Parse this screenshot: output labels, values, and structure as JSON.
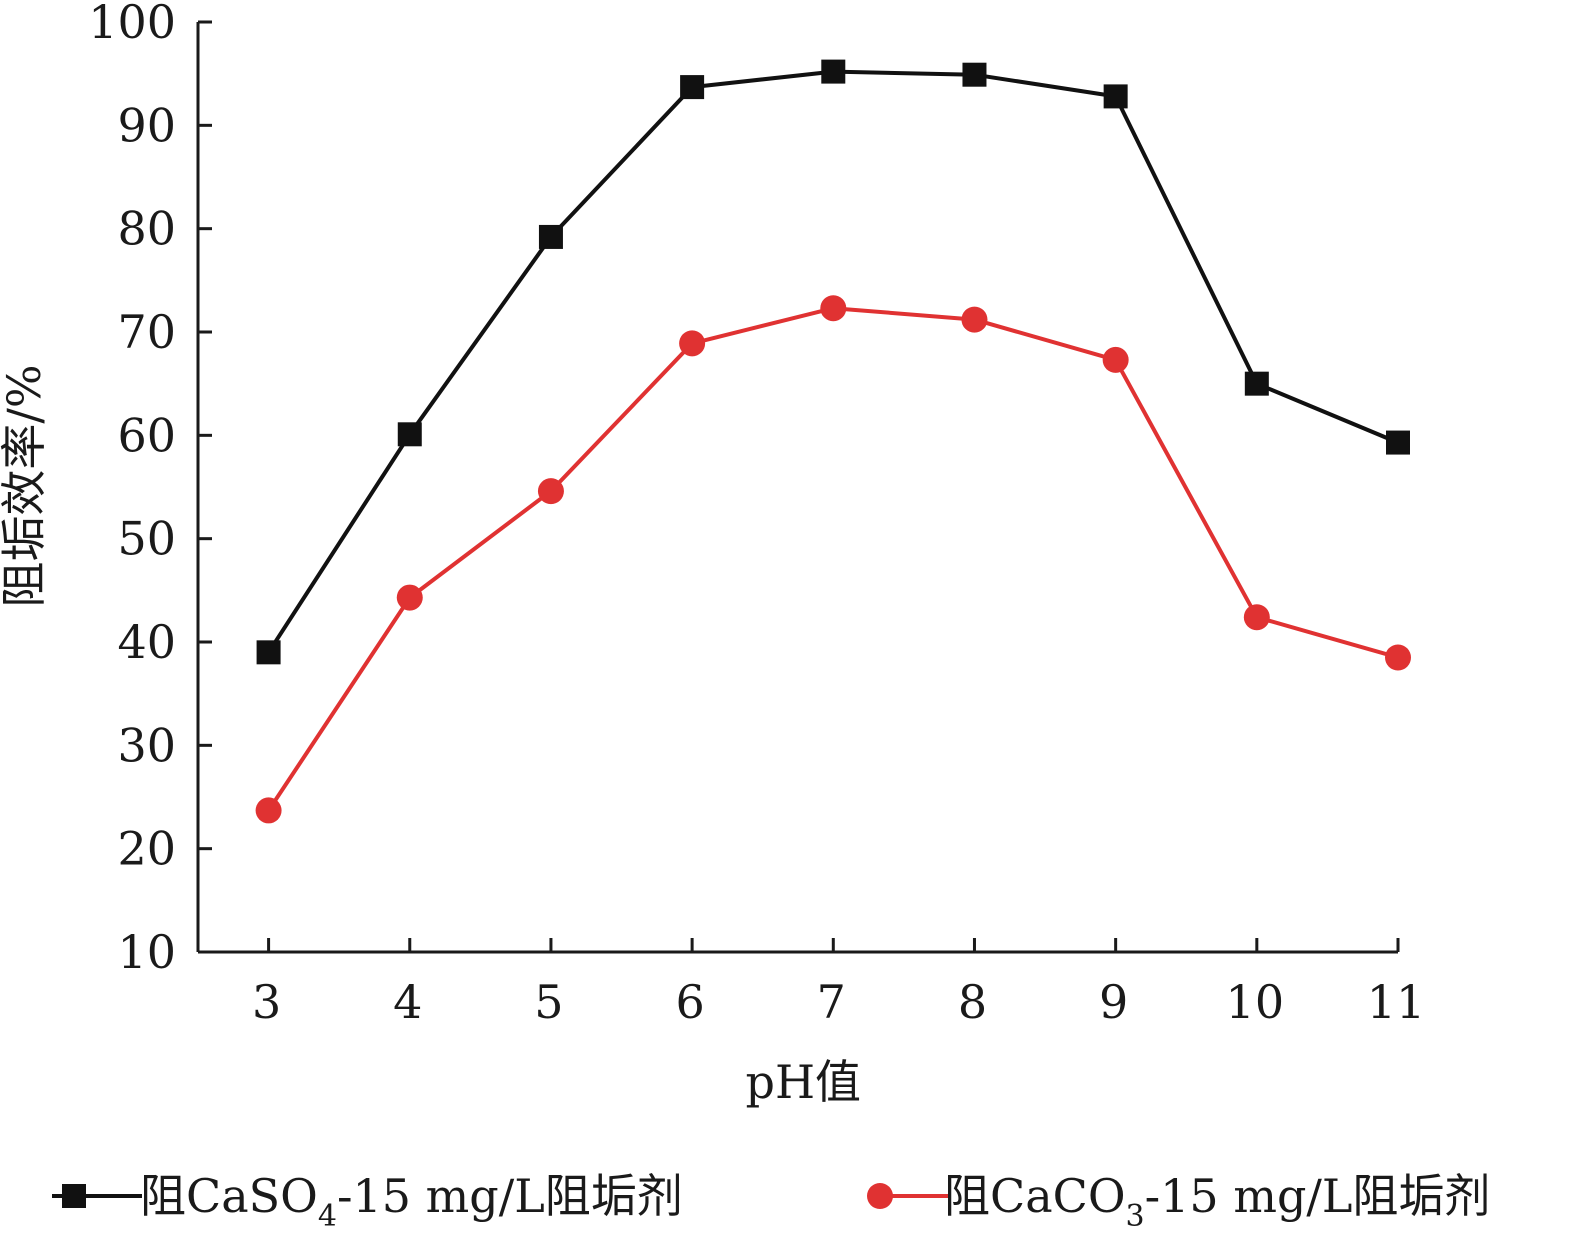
{
  "chart_data": {
    "type": "line",
    "title": "",
    "xlabel": "pH值",
    "ylabel": "阻垢效率/%",
    "x": [
      3,
      4,
      5,
      6,
      7,
      8,
      9,
      10,
      11
    ],
    "x_tick_labels": [
      "3",
      "4",
      "5",
      "6",
      "7",
      "8",
      "9",
      "10",
      "11"
    ],
    "xlim": [
      2.5,
      11
    ],
    "ylim": [
      10,
      100
    ],
    "y_ticks": [
      10,
      20,
      30,
      40,
      50,
      60,
      70,
      80,
      90,
      100
    ],
    "y_tick_labels": [
      "10",
      "20",
      "30",
      "40",
      "50",
      "60",
      "70",
      "80",
      "90",
      "100"
    ],
    "grid": false,
    "legend_position": "bottom",
    "series": [
      {
        "name_parts": {
          "prefix": "阻CaSO",
          "sub": "4",
          "suffix": "-15 mg/L阻垢剂"
        },
        "marker": "square",
        "color": "#111111",
        "values": [
          39.0,
          60.1,
          79.2,
          93.7,
          95.2,
          94.9,
          92.8,
          65.0,
          59.3
        ]
      },
      {
        "name_parts": {
          "prefix": "阻CaCO",
          "sub": "3",
          "suffix": "-15 mg/L阻垢剂"
        },
        "marker": "circle",
        "color": "#e03232",
        "values": [
          23.7,
          44.3,
          54.6,
          68.9,
          72.3,
          71.2,
          67.3,
          42.4,
          38.5
        ]
      }
    ]
  }
}
